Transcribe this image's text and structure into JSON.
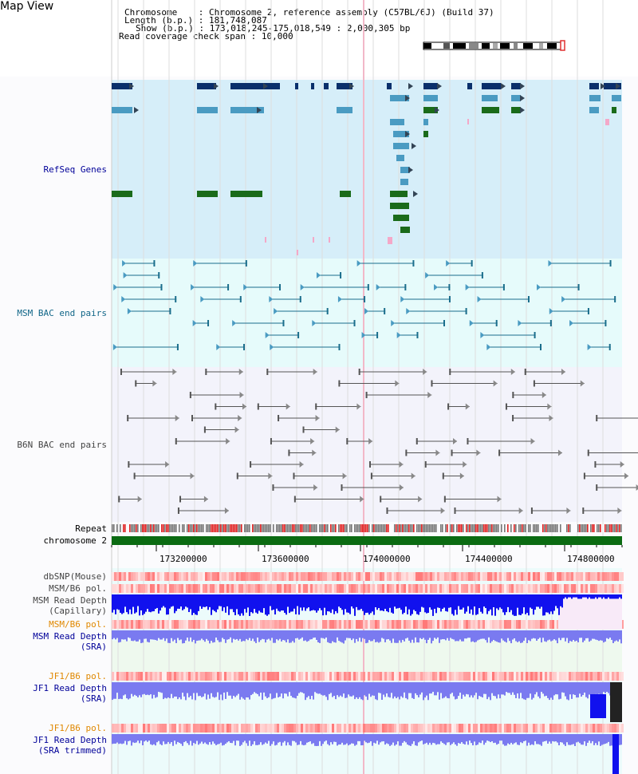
{
  "page": {
    "title": "Map View"
  },
  "info": {
    "chromosome_label": "Chromosome",
    "chromosome_value": "Chromosome 2, reference assembly (C57BL/6J) (Build 37)",
    "length_label": "Length (b.p.)",
    "length_value": "181,748,087",
    "show_label": "Show (b.p.)",
    "show_value": "173,018,245-175,018,549 : 2,000,305 bp",
    "span_label": "Read coverage check span",
    "span_value": "10,000",
    "sep": ":"
  },
  "tracks": {
    "refseq": "RefSeq Genes",
    "msm_bac": "MSM BAC end pairs",
    "b6n_bac": "B6N BAC end pairs",
    "repeat": "Repeat",
    "chromosome": "chromosome 2",
    "dbsnp": "dbSNP(Mouse)",
    "msm_b6_pol_1": "MSM/B6 pol.",
    "msm_read_depth_cap_1": "MSM Read Depth",
    "msm_read_depth_cap_2": "(Capillary)",
    "msm_b6_pol_2": "MSM/B6 pol.",
    "msm_read_depth_sra_1": "MSM Read Depth",
    "msm_read_depth_sra_2": "(SRA)",
    "jf1_b6_pol_1": "JF1/B6 pol.",
    "jf1_read_depth_sra_1": "JF1 Read Depth",
    "jf1_read_depth_sra_2": "(SRA)",
    "jf1_b6_pol_2": "JF1/B6 pol.",
    "jf1_read_depth_trim_1": "JF1 Read Depth",
    "jf1_read_depth_trim_2": "(SRA trimmed)"
  },
  "axis": {
    "ticks": [
      "173200000",
      "173600000",
      "174000000",
      "174400000",
      "174800000"
    ]
  },
  "colors": {
    "refseq_bg": "#d6eef9",
    "msm_bg": "#e6fbfb",
    "b6n_bg": "#f3f3fb",
    "gene_dark": "#0a2f6b",
    "gene_mid": "#4a9bc2",
    "gene_green": "#1a6b1a",
    "msm_line": "#1b6e8c",
    "b6n_line": "#555555",
    "chromosome_bar": "#0b6b12",
    "depth_blue": "#1111ee",
    "depth_light": "#7a7af0",
    "label_navy": "#000099",
    "label_teal": "#116688",
    "label_orange": "#e08800"
  }
}
